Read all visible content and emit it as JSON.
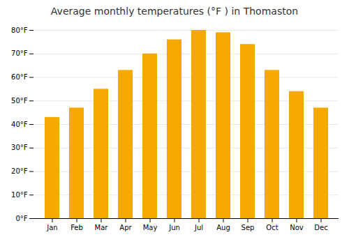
{
  "chart_data": {
    "type": "bar",
    "title": "Average monthly temperatures (°F ) in Thomaston",
    "categories": [
      "Jan",
      "Feb",
      "Mar",
      "Apr",
      "May",
      "Jun",
      "Jul",
      "Aug",
      "Sep",
      "Oct",
      "Nov",
      "Dec"
    ],
    "values": [
      43,
      47,
      55,
      63,
      70,
      76,
      80,
      79,
      74,
      63,
      54,
      47
    ],
    "color": "#F5A800",
    "ylim": [
      0,
      80
    ],
    "yticks": [
      {
        "value": 0,
        "label": "0°F"
      },
      {
        "value": 10,
        "label": "10°F"
      },
      {
        "value": 20,
        "label": "20°F"
      },
      {
        "value": 30,
        "label": "30°F"
      },
      {
        "value": 40,
        "label": "40°F"
      },
      {
        "value": 50,
        "label": "50°F"
      },
      {
        "value": 60,
        "label": "60°F"
      },
      {
        "value": 70,
        "label": "70°F"
      },
      {
        "value": 80,
        "label": "80°F"
      }
    ],
    "grid": true
  }
}
